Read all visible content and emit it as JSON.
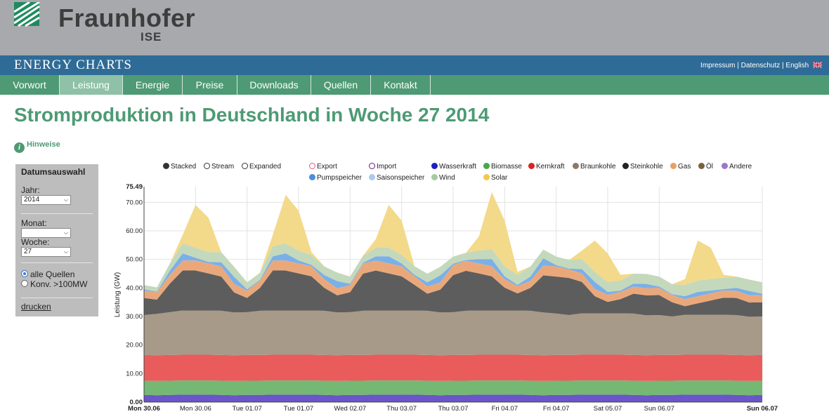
{
  "header": {
    "logo_name": "Fraunhofer",
    "logo_sub": "ISE",
    "brand": "ENERGY CHARTS",
    "links": [
      "Impressum",
      "Datenschutz",
      "English"
    ]
  },
  "nav": {
    "items": [
      "Vorwort",
      "Leistung",
      "Energie",
      "Preise",
      "Downloads",
      "Quellen",
      "Kontakt"
    ],
    "active": "Leistung"
  },
  "page_title": "Stromproduktion in Deutschland in Woche 27 2014",
  "hint_label": "Hinweise",
  "panel": {
    "title": "Datumsauswahl",
    "year_label": "Jahr:",
    "year_value": "2014",
    "month_label": "Monat:",
    "month_value": "",
    "week_label": "Woche:",
    "week_value": "27",
    "radio_all": "alle Quellen",
    "radio_conv": "Konv. >100MW",
    "print_label": "drucken"
  },
  "legend": {
    "modes": [
      "Stacked",
      "Stream",
      "Expanded"
    ],
    "row1": [
      {
        "label": "Export",
        "color": "#e05a8a",
        "style": "ring"
      },
      {
        "label": "Import",
        "color": "#6a1a7a",
        "style": "ring"
      },
      {
        "label": "Wasserkraft",
        "color": "#1f1fb8",
        "style": "dot"
      },
      {
        "label": "Biomasse",
        "color": "#48a848",
        "style": "dot"
      },
      {
        "label": "Kernkraft",
        "color": "#e02020",
        "style": "dot"
      },
      {
        "label": "Braunkohle",
        "color": "#8a7a6a",
        "style": "dot"
      },
      {
        "label": "Steinkohle",
        "color": "#222222",
        "style": "dot"
      },
      {
        "label": "Gas",
        "color": "#e8a060",
        "style": "dot"
      },
      {
        "label": "Öl",
        "color": "#7a6040",
        "style": "dot"
      },
      {
        "label": "Andere",
        "color": "#9a78c8",
        "style": "dot"
      }
    ],
    "row2": [
      {
        "label": "Pumpspeicher",
        "color": "#4a90d8",
        "style": "dot"
      },
      {
        "label": "Saisonspeicher",
        "color": "#b0c8f0",
        "style": "dot"
      },
      {
        "label": "Wind",
        "color": "#a8c8a0",
        "style": "dot"
      },
      {
        "label": "Solar",
        "color": "#f2c94c",
        "style": "dot"
      }
    ]
  },
  "chart_data": {
    "type": "area",
    "title": "Stromproduktion in Deutschland in Woche 27 2014",
    "ylabel": "Leistung (GW)",
    "ylim": [
      0,
      75.49
    ],
    "y_ticks": [
      "0.00",
      "10.00",
      "20.00",
      "30.00",
      "40.00",
      "50.00",
      "60.00",
      "70.00",
      "75.49"
    ],
    "x_tick_labels": [
      "Mon 30.06",
      "Mon 30.06",
      "Tue 01.07",
      "Tue 01.07",
      "Wed 02.07",
      "Thu 03.07",
      "Thu 03.07",
      "Fri 04.07",
      "Fri 04.07",
      "Sat 05.07",
      "Sun 06.07",
      "Sun 06.07"
    ],
    "x_tick_hours": [
      0,
      12,
      24,
      36,
      48,
      60,
      72,
      84,
      96,
      108,
      120,
      144
    ],
    "x_tick_bold": [
      true,
      false,
      false,
      false,
      false,
      false,
      false,
      false,
      false,
      false,
      false,
      true
    ],
    "hours": [
      0,
      3,
      6,
      9,
      12,
      15,
      18,
      21,
      24,
      27,
      30,
      33,
      36,
      39,
      42,
      45,
      48,
      51,
      54,
      57,
      60,
      63,
      66,
      69,
      72,
      75,
      78,
      81,
      84,
      87,
      90,
      93,
      96,
      99,
      102,
      105,
      108,
      111,
      114,
      117,
      120,
      123,
      126,
      129,
      132,
      135,
      138,
      141,
      144
    ],
    "series": [
      {
        "name": "Wasserkraft",
        "color": "#6b55c8",
        "values": [
          2.5,
          2.4,
          2.5,
          2.6,
          2.6,
          2.6,
          2.5,
          2.4,
          2.5,
          2.5,
          2.6,
          2.6,
          2.6,
          2.6,
          2.5,
          2.4,
          2.5,
          2.5,
          2.6,
          2.6,
          2.6,
          2.6,
          2.5,
          2.4,
          2.5,
          2.5,
          2.6,
          2.6,
          2.6,
          2.6,
          2.5,
          2.4,
          2.5,
          2.5,
          2.6,
          2.6,
          2.6,
          2.6,
          2.5,
          2.4,
          2.5,
          2.5,
          2.6,
          2.6,
          2.6,
          2.6,
          2.5,
          2.4,
          2.5
        ]
      },
      {
        "name": "Biomasse",
        "color": "#74b874",
        "values": [
          5,
          5,
          5,
          5,
          5,
          5,
          5,
          5,
          5,
          5,
          5,
          5,
          5,
          5,
          5,
          5,
          5,
          5,
          5,
          5,
          5,
          5,
          5,
          5,
          5,
          5,
          5,
          5,
          5,
          5,
          5,
          5,
          5,
          5,
          5,
          5,
          5,
          5,
          5,
          5,
          5,
          5,
          5,
          5,
          5,
          5,
          5,
          5,
          5
        ]
      },
      {
        "name": "Kernkraft",
        "color": "#ea5c5c",
        "values": [
          9,
          9,
          9,
          9,
          9,
          9,
          9,
          9,
          9,
          9,
          9,
          9,
          9,
          9,
          9,
          9,
          9,
          9,
          9,
          9,
          9,
          9,
          9,
          9,
          9,
          9,
          9,
          9,
          9,
          9,
          9,
          9,
          9,
          9,
          9,
          9,
          9,
          9,
          9,
          9,
          9,
          9,
          9,
          9,
          9,
          9,
          9,
          9,
          9
        ]
      },
      {
        "name": "Braunkohle",
        "color": "#a89a88",
        "values": [
          14,
          14.5,
          15,
          15.5,
          15.5,
          15.5,
          15.5,
          15,
          15,
          15.5,
          15.5,
          15.5,
          15.5,
          15.5,
          15.5,
          15,
          15,
          15.5,
          15.5,
          15.5,
          15.5,
          15.5,
          15.5,
          15,
          15,
          15.5,
          15.5,
          15.5,
          15.5,
          15.5,
          15.5,
          15,
          14.5,
          14,
          14.5,
          14.5,
          14.5,
          14.5,
          14.5,
          14,
          14,
          13.5,
          14,
          14,
          14,
          14,
          14,
          13.5,
          13.5
        ]
      },
      {
        "name": "Steinkohle",
        "color": "#5d5d5d",
        "values": [
          6,
          5,
          10,
          14,
          14,
          13,
          12,
          7,
          5,
          8,
          14,
          14,
          13,
          12,
          8,
          6,
          7,
          13,
          14,
          13,
          12,
          9,
          6,
          8,
          13,
          14,
          13,
          12,
          8,
          6,
          8,
          13,
          13,
          13,
          11,
          6,
          4,
          5,
          7,
          7,
          7,
          5,
          3,
          4,
          5,
          6,
          6,
          5,
          5
        ]
      },
      {
        "name": "Gas",
        "color": "#eaa87a",
        "values": [
          2.5,
          2.5,
          3,
          3.5,
          3.5,
          3.5,
          3.5,
          3,
          2.5,
          2.5,
          3.5,
          3.5,
          3.5,
          3.5,
          3,
          2.5,
          2.5,
          3.5,
          3.5,
          3.5,
          3.5,
          3,
          2.5,
          2.5,
          3.5,
          3.5,
          3.5,
          3.5,
          3,
          2.5,
          2.5,
          3.5,
          3.5,
          3,
          3,
          2.5,
          2.5,
          2.5,
          2.5,
          2.5,
          2.5,
          2.5,
          2.5,
          2.5,
          2.5,
          2.5,
          2.5,
          2.5,
          2.5
        ]
      },
      {
        "name": "Pumpspeicher",
        "color": "#7ab0e8",
        "values": [
          0.5,
          0.3,
          1.5,
          2.5,
          1,
          0.5,
          1.5,
          2.5,
          0.5,
          0.3,
          1.5,
          2.5,
          1,
          0.5,
          1.5,
          2.5,
          0.5,
          0.3,
          1.5,
          2.5,
          1,
          0.5,
          1.5,
          2.5,
          0.5,
          0.3,
          1.5,
          2.5,
          1,
          0.5,
          1.5,
          2.5,
          0.5,
          0.3,
          1.5,
          2.5,
          1,
          0.5,
          1,
          1.5,
          0.5,
          0.3,
          1,
          1.5,
          1,
          0.5,
          1,
          1.5,
          0.5
        ]
      },
      {
        "name": "Wind",
        "color": "#c4d8bc",
        "values": [
          1.5,
          1.5,
          2.5,
          3.5,
          3.5,
          3.5,
          3.5,
          3.5,
          2.5,
          2.5,
          3.5,
          3.5,
          3.5,
          3.5,
          3,
          3,
          2.5,
          2.5,
          3,
          3,
          3,
          3,
          3,
          3,
          2.5,
          2.5,
          3,
          3.5,
          3.5,
          3.5,
          3.5,
          3,
          3,
          3,
          3.5,
          3.5,
          3.5,
          3.5,
          3.5,
          3.5,
          3.5,
          3.5,
          4,
          4,
          4,
          4,
          4,
          4,
          4
        ]
      },
      {
        "name": "Solar",
        "color": "#f3d98a",
        "values": [
          0,
          0,
          0,
          3,
          15,
          12,
          0,
          0,
          0,
          0,
          4,
          17,
          14,
          1,
          0,
          0,
          0,
          0,
          3,
          15,
          12,
          0,
          0,
          0,
          0,
          0,
          5,
          20,
          16,
          1,
          0,
          0,
          0,
          0,
          3,
          11,
          10,
          2,
          0,
          0,
          0,
          0,
          2,
          14,
          11,
          1,
          0,
          0,
          0
        ]
      }
    ]
  }
}
